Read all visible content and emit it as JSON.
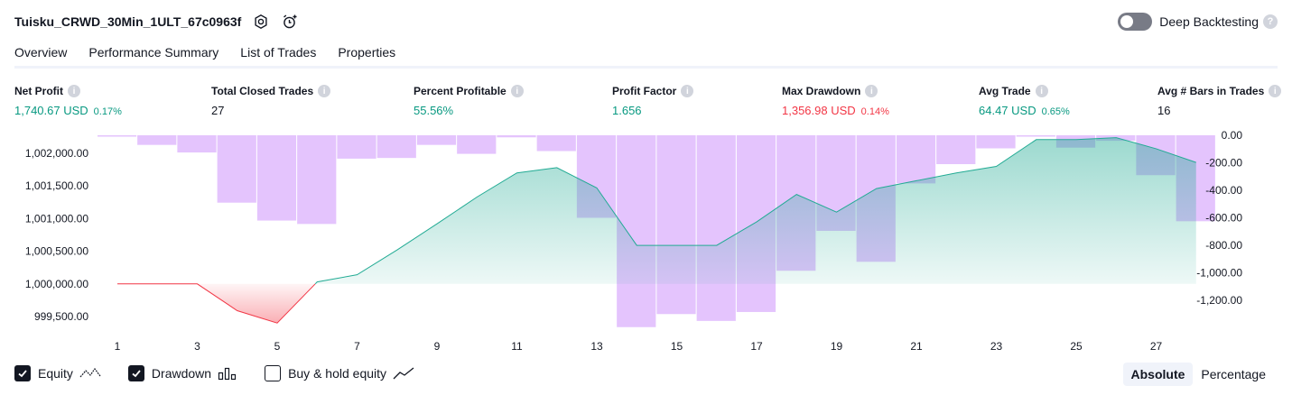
{
  "header": {
    "title": "Tuisku_CRWD_30Min_1ULT_67c0963f",
    "deep_backtesting_label": "Deep Backtesting"
  },
  "tabs": [
    {
      "label": "Overview",
      "active": true
    },
    {
      "label": "Performance Summary"
    },
    {
      "label": "List of Trades"
    },
    {
      "label": "Properties"
    }
  ],
  "metrics": {
    "net_profit": {
      "label": "Net Profit",
      "value": "1,740.67 USD",
      "pct": "0.17%"
    },
    "total_closed_trades": {
      "label": "Total Closed Trades",
      "value": "27"
    },
    "percent_profitable": {
      "label": "Percent Profitable",
      "value": "55.56%"
    },
    "profit_factor": {
      "label": "Profit Factor",
      "value": "1.656"
    },
    "max_drawdown": {
      "label": "Max Drawdown",
      "value": "1,356.98 USD",
      "pct": "0.14%"
    },
    "avg_trade": {
      "label": "Avg Trade",
      "value": "64.47 USD",
      "pct": "0.65%"
    },
    "avg_bars": {
      "label": "Avg # Bars in Trades",
      "value": "16"
    }
  },
  "colors": {
    "profit": "#089981",
    "loss": "#f23645",
    "drawdown_bar": "#ce93fc",
    "equity_line": "#22ab94"
  },
  "chart_data": {
    "type": "line",
    "x": [
      1,
      2,
      3,
      4,
      5,
      6,
      7,
      8,
      9,
      10,
      11,
      12,
      13,
      14,
      15,
      16,
      17,
      18,
      19,
      20,
      21,
      22,
      23,
      24,
      25,
      26,
      27,
      28
    ],
    "x_tick_labels": [
      "1",
      "3",
      "5",
      "7",
      "9",
      "11",
      "13",
      "15",
      "17",
      "19",
      "21",
      "23",
      "25",
      "27"
    ],
    "equity_axis_ticks": [
      "1,002,000.00",
      "1,001,500.00",
      "1,001,000.00",
      "1,000,500.00",
      "1,000,000.00",
      "999,500.00"
    ],
    "drawdown_axis_ticks": [
      "0.00",
      "-200.00",
      "-400.00",
      "-600.00",
      "-800.00",
      "-1,000.00",
      "-1,200.00"
    ],
    "equity_ylim": [
      999300,
      1002300
    ],
    "drawdown_ylim": [
      -1400,
      0
    ],
    "series": [
      {
        "name": "Equity",
        "kind": "line",
        "values": [
          1000000,
          1000000,
          1000000,
          999590,
          999400,
          1000030,
          1000140,
          1000520,
          1000920,
          1001330,
          1001700,
          1001780,
          1001470,
          1000590,
          1000590,
          1000590,
          1000950,
          1001370,
          1001100,
          1001460,
          1001580,
          1001700,
          1001800,
          1002210,
          1002210,
          1002240,
          1002070,
          1001860
        ]
      },
      {
        "name": "Drawdown",
        "kind": "bar",
        "values": [
          -10,
          -70,
          -125,
          -490,
          -620,
          -645,
          -170,
          -165,
          -70,
          -135,
          -15,
          -115,
          -600,
          -1395,
          -1300,
          -1350,
          -1285,
          -985,
          -695,
          -920,
          -350,
          -210,
          -95,
          -10,
          -90,
          -40,
          -290,
          -625
        ]
      }
    ]
  },
  "legend": {
    "equity_label": "Equity",
    "drawdown_label": "Drawdown",
    "buyhold_label": "Buy & hold equity"
  },
  "modes": {
    "absolute_label": "Absolute",
    "percentage_label": "Percentage"
  }
}
